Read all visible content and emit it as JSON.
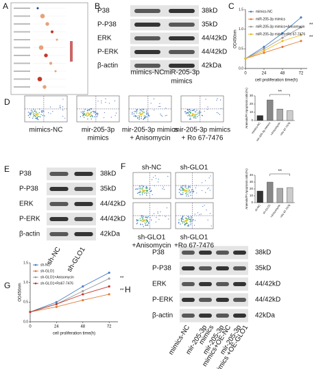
{
  "panels": {
    "A": {
      "label": "A"
    },
    "B": {
      "label": "B",
      "rows": [
        {
          "protein": "P38",
          "size": "38kD"
        },
        {
          "protein": "P-P38",
          "size": "35kD"
        },
        {
          "protein": "ERK",
          "size": "44/42kD"
        },
        {
          "protein": "P-ERK",
          "size": "44/42kD"
        },
        {
          "protein": "β-actin",
          "size": "42kDa"
        }
      ],
      "lanes": [
        [
          "mimics-NC"
        ],
        [
          "miR-205-3p",
          "mimics"
        ]
      ]
    },
    "C": {
      "label": "C",
      "chart": {
        "type": "line",
        "y_label": "OD450nm",
        "x_label": "cell proliferation time(h)",
        "x": [
          0,
          24,
          48,
          72
        ],
        "xlim": [
          0,
          80
        ],
        "xticks": [
          0,
          24,
          48,
          72
        ],
        "ylim": [
          0,
          1.5
        ],
        "yticks": [
          {
            "value": 0,
            "label": "0.0"
          },
          {
            "value": 0.5,
            "label": "0.5"
          },
          {
            "value": 1,
            "label": "1.0"
          },
          {
            "value": 1.5,
            "label": "1.5"
          }
        ],
        "series": [
          {
            "name": "mimics-NC",
            "color": "#4a7fc1",
            "values": [
              0.25,
              0.55,
              0.9,
              1.3
            ]
          },
          {
            "name": "miR-205-3p mimics",
            "color": "#e07b39",
            "values": [
              0.25,
              0.4,
              0.55,
              0.7
            ]
          },
          {
            "name": "miR-205-3p mimics+Anisomycin",
            "color": "#9a9a9a",
            "values": [
              0.25,
              0.5,
              0.78,
              1.05
            ]
          },
          {
            "name": "miR-205-3p mimics+Ro 67-7476",
            "color": "#f0b823",
            "values": [
              0.25,
              0.45,
              0.7,
              0.85
            ]
          }
        ],
        "annotations": [
          "**",
          "**"
        ]
      }
    },
    "D": {
      "label": "D",
      "plots": [
        "mimics-NC",
        [
          "mir-205-3p",
          "mimics"
        ],
        [
          "mir-205-3p mimics",
          "+ Anisomycin"
        ],
        [
          "mir-205-3p mimics",
          "+ Ro 67-7476"
        ]
      ],
      "chart": {
        "type": "bar",
        "y_label": "Annexin/PI Apoptosis ratio(%)",
        "categories": [
          "mimics-NC",
          "mir-205-3p mimics",
          "+Anisomycin",
          "+Ro 67-7476"
        ],
        "values": [
          6,
          25,
          14,
          12
        ],
        "colors": [
          "#333333",
          "#888888",
          "#aaaaaa",
          "#cccccc"
        ],
        "ylim": [
          0,
          30
        ],
        "yticks": [
          0,
          10,
          20,
          30
        ],
        "annotation": "**"
      }
    },
    "E": {
      "label": "E",
      "rows": [
        {
          "protein": "P38",
          "size": "38kD"
        },
        {
          "protein": "P-P38",
          "size": "35kD"
        },
        {
          "protein": "ERK",
          "size": "44/42kD"
        },
        {
          "protein": "P-ERK",
          "size": "44/42kD"
        },
        {
          "protein": "β-actin",
          "size": "42kDa"
        }
      ],
      "lanes": [
        [
          "sh-NC"
        ],
        [
          "sh-GLO1"
        ]
      ]
    },
    "F": {
      "label": "F",
      "plots": [
        "sh-NC",
        "sh-GLO1",
        [
          "sh-GLO1",
          "+Anisomycin"
        ],
        [
          "sh-GLO1",
          "+Ro 67-7476"
        ]
      ],
      "chart": {
        "type": "bar",
        "y_label": "Annexin/PI Apoptosis ratio(%)",
        "categories": [
          "sh-NC",
          "sh-GLO1",
          "+Anisomycin",
          "+Ro 67-7476"
        ],
        "values": [
          17,
          30,
          21,
          22
        ],
        "colors": [
          "#333333",
          "#888888",
          "#aaaaaa",
          "#cccccc"
        ],
        "ylim": [
          0,
          40
        ],
        "yticks": [
          0,
          10,
          20,
          30,
          40
        ],
        "annotation": "**"
      }
    },
    "G": {
      "label": "G",
      "chart": {
        "type": "line",
        "y_label": "OD450nm",
        "x_label": "cell proliferation time(h)",
        "x": [
          0,
          24,
          48,
          72
        ],
        "xlim": [
          0,
          80
        ],
        "xticks": [
          0,
          24,
          48,
          72
        ],
        "ylim": [
          0,
          1.5
        ],
        "yticks": [
          {
            "value": 0,
            "label": "0.0"
          },
          {
            "value": 0.5,
            "label": "0.5"
          },
          {
            "value": 1,
            "label": "1.0"
          },
          {
            "value": 1.5,
            "label": "1.5"
          }
        ],
        "series": [
          {
            "name": "sh-NC",
            "color": "#4a7fc1",
            "values": [
              0.25,
              0.5,
              0.9,
              1.25
            ]
          },
          {
            "name": "sh-GLO1",
            "color": "#e07b39",
            "values": [
              0.25,
              0.38,
              0.55,
              0.7
            ]
          },
          {
            "name": "sh-GLO1+Anisomycin",
            "color": "#9a9a9a",
            "values": [
              0.25,
              0.45,
              0.78,
              1.1
            ]
          },
          {
            "name": "sh-GLO1+Ro67-7476",
            "color": "#c0392b",
            "values": [
              0.25,
              0.45,
              0.7,
              0.9
            ]
          }
        ],
        "annotations": [
          "**",
          "**"
        ]
      }
    },
    "H": {
      "label": "H",
      "rows": [
        {
          "protein": "P38",
          "size": "38kD"
        },
        {
          "protein": "P-P38",
          "size": "35kD"
        },
        {
          "protein": "ERK",
          "size": "44/42kD"
        },
        {
          "protein": "P-ERK",
          "size": "44/42kD"
        },
        {
          "protein": "β-actin",
          "size": "42kDa"
        }
      ],
      "lanes": [
        [
          "mimics-NC"
        ],
        [
          "mir-205-3p",
          "mimics"
        ],
        [
          "mir-205-3p",
          "mimics+OE-NC"
        ],
        [
          "mir-205-3p",
          "mimics +OE-GLO1"
        ]
      ]
    }
  }
}
